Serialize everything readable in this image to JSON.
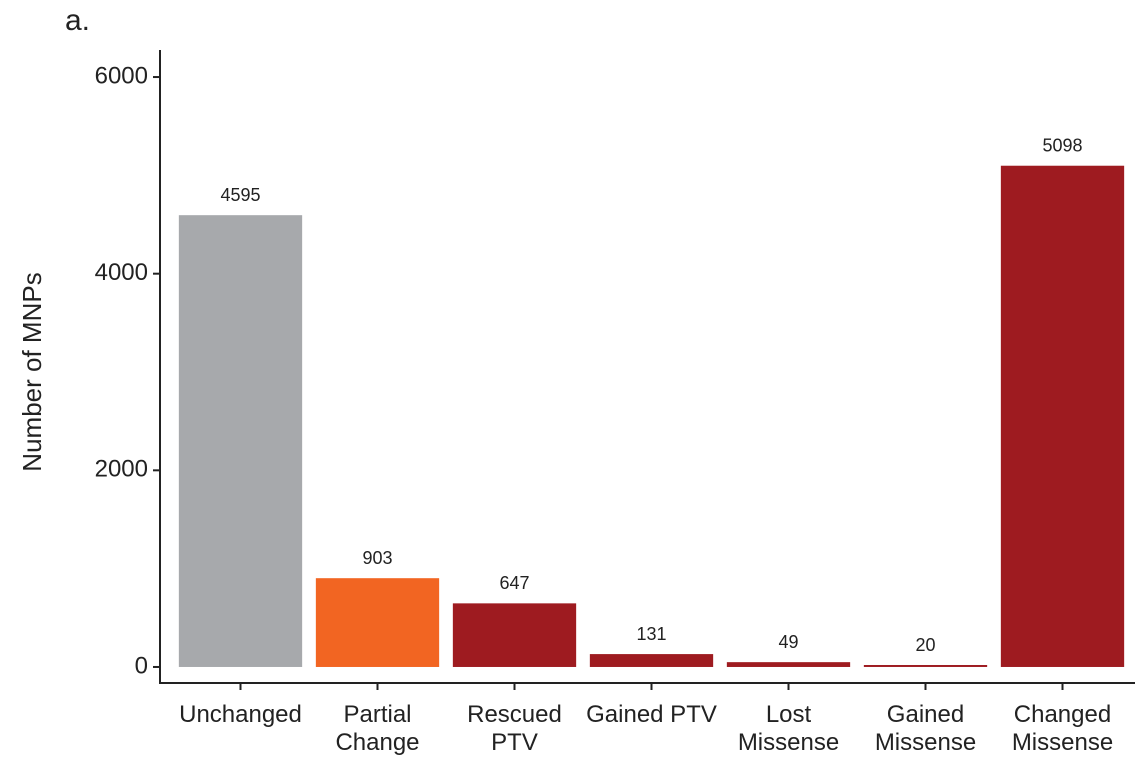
{
  "chart_data": {
    "type": "bar",
    "title": "a.",
    "y_label": "Number of MNPs",
    "categories": [
      "Unchanged",
      "Partial Change",
      "Rescued PTV",
      "Gained PTV",
      "Lost Missense",
      "Gained Missense",
      "Changed Missense"
    ],
    "values": [
      4595,
      903,
      647,
      131,
      49,
      20,
      5098
    ],
    "colors": [
      "#a7a9ac",
      "#f26522",
      "#9e1b20",
      "#9e1b20",
      "#9e1b20",
      "#9e1b20",
      "#9e1b20"
    ],
    "ylim": [
      -163,
      6275
    ],
    "yticks": [
      0,
      2000,
      4000,
      6000
    ],
    "grid": false
  }
}
